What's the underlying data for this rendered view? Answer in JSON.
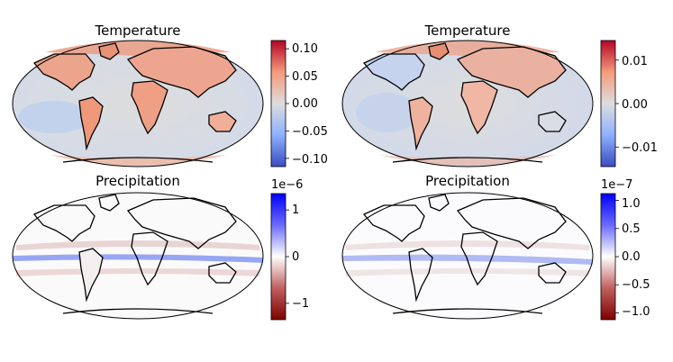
{
  "chart_data": [
    {
      "type": "heatmap",
      "title": "Temperature",
      "map_projection": "robinson",
      "colormap": "coolwarm",
      "colorbar": {
        "range": [
          -0.115,
          0.115
        ],
        "ticks": [
          0.1,
          0.05,
          0.0,
          -0.05,
          -0.1
        ],
        "tick_labels": [
          "0.10",
          "0.05",
          "0.00",
          "−0.05",
          "−0.10"
        ],
        "offset_label": ""
      }
    },
    {
      "type": "heatmap",
      "title": "Temperature",
      "map_projection": "robinson",
      "colormap": "coolwarm",
      "colorbar": {
        "range": [
          -0.0145,
          0.0145
        ],
        "ticks": [
          0.01,
          0.0,
          -0.01
        ],
        "tick_labels": [
          "0.01",
          "0.00",
          "−0.01"
        ],
        "offset_label": ""
      }
    },
    {
      "type": "heatmap",
      "title": "Precipitation",
      "map_projection": "robinson",
      "colormap": "seismic_r",
      "colorbar": {
        "range": [
          -1.35,
          1.35
        ],
        "ticks": [
          1,
          0,
          -1
        ],
        "tick_labels": [
          "1",
          "0",
          "−1"
        ],
        "offset_label": "1e−6"
      }
    },
    {
      "type": "heatmap",
      "title": "Precipitation",
      "map_projection": "robinson",
      "colormap": "seismic_r",
      "colorbar": {
        "range": [
          -1.12,
          1.12
        ],
        "ticks": [
          1.0,
          0.5,
          0.0,
          -0.5,
          -1.0
        ],
        "tick_labels": [
          "1.0",
          "0.5",
          "0.0",
          "−0.5",
          "−1.0"
        ],
        "offset_label": "1e−7"
      }
    }
  ],
  "colors": {
    "coolwarm_low": "#3b4cc0",
    "coolwarm_mid": "#dddddd",
    "coolwarm_high": "#b40426",
    "seismic_r_low": "#7f0000",
    "seismic_r_mid": "#ffffff",
    "seismic_r_high": "#0000ff",
    "coastline": "#000000"
  }
}
